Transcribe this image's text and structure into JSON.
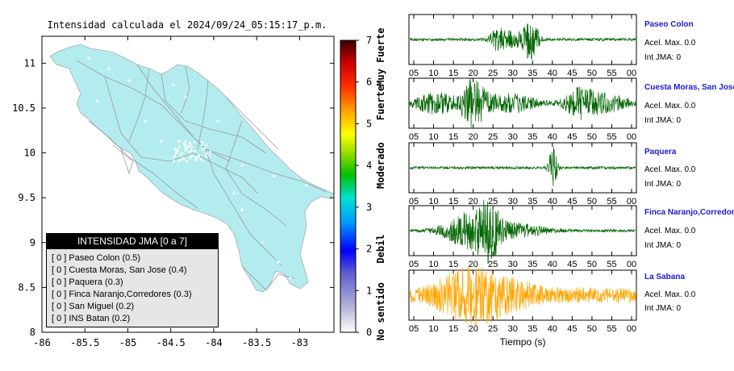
{
  "map": {
    "title": "Intensidad calculada el 2024/09/24_05:15:17_p.m.",
    "x_ticks": [
      "-86",
      "-85.5",
      "-85",
      "-84.5",
      "-84",
      "-83.5",
      "-83"
    ],
    "y_ticks": [
      "11",
      "10.5",
      "10",
      "9.5",
      "9",
      "8.5",
      "8"
    ],
    "xlim": [
      -86,
      -82.6
    ],
    "ylim": [
      8,
      11.3
    ],
    "land_color": "#b3ecee",
    "road_color": "#9a9a9a"
  },
  "colorbar": {
    "ticks": [
      "0",
      "1",
      "2",
      "3",
      "4",
      "5",
      "6",
      "7"
    ],
    "labels": [
      "No sentido",
      "Debil",
      "Moderado",
      "Fuerte",
      "Muy Fuerte"
    ]
  },
  "legend": {
    "title": "INTENSIDAD JMA [0 a 7]",
    "entries": [
      "[ 0 ]  Paseo Colon (0.5)",
      "[ 0 ]  Cuesta Moras, San Jose (0.4)",
      "[ 0 ]  Paquera (0.3)",
      "[ 0 ]  Finca Naranjo,Corredores (0.3)",
      "[ 0 ]  San Miguel (0.2)",
      "[ 0 ]  INS Batan (0.2)"
    ]
  },
  "waveforms": {
    "x_ticks": [
      "05",
      "10",
      "15",
      "20",
      "25",
      "30",
      "35",
      "40",
      "45",
      "50",
      "55",
      "00"
    ],
    "xlabel": "Tiempo (s)",
    "stations": [
      {
        "name": "Paseo Colon",
        "acel": "Acel. Max. 0.0",
        "int": "Int JMA: 0",
        "color": "#006400"
      },
      {
        "name": "Cuesta Moras, San Jose",
        "acel": "Acel. Max. 0.0",
        "int": "Int JMA: 0",
        "color": "#006400"
      },
      {
        "name": "Paquera",
        "acel": "Acel. Max. 0.0",
        "int": "Int JMA: 0",
        "color": "#006400"
      },
      {
        "name": "Finca Naranjo,Corredores",
        "acel": "Acel. Max. 0.0",
        "int": "Int JMA: 0",
        "color": "#006400"
      },
      {
        "name": "La Sabana",
        "acel": "Acel. Max. 0.0",
        "int": "Int JMA: 0",
        "color": "#ffa500"
      }
    ]
  },
  "chart_data": [
    {
      "type": "heatmap",
      "title": "Intensidad calculada el 2024/09/24_05:15:17_p.m.",
      "xlim": [
        -86,
        -82.6
      ],
      "ylim": [
        8,
        11.3
      ],
      "colorbar_range": [
        0,
        7
      ],
      "colorbar_labels": [
        "No sentido",
        "Debil",
        "Moderado",
        "Fuerte",
        "Muy Fuerte"
      ],
      "legend_title": "INTENSIDAD JMA [0 a 7]",
      "stations": [
        {
          "name": "Paseo Colon",
          "intensity": 0,
          "value": 0.5
        },
        {
          "name": "Cuesta Moras, San Jose",
          "intensity": 0,
          "value": 0.4
        },
        {
          "name": "Paquera",
          "intensity": 0,
          "value": 0.3
        },
        {
          "name": "Finca Naranjo,Corredores",
          "intensity": 0,
          "value": 0.3
        },
        {
          "name": "San Miguel",
          "intensity": 0,
          "value": 0.2
        },
        {
          "name": "INS Batan",
          "intensity": 0,
          "value": 0.2
        }
      ]
    },
    {
      "type": "line",
      "xlabel": "Tiempo (s)",
      "x_ticks": [
        "05",
        "10",
        "15",
        "20",
        "25",
        "30",
        "35",
        "40",
        "45",
        "50",
        "55",
        "00"
      ],
      "series": [
        {
          "name": "Paseo Colon",
          "acel_max": 0.0,
          "int_jma": 0,
          "bursts": [
            [
              23,
              2,
              0.45
            ],
            [
              27,
              3,
              0.35
            ],
            [
              32,
              2,
              1.0
            ]
          ]
        },
        {
          "name": "Cuesta Moras, San Jose",
          "acel_max": 0.0,
          "int_jma": 0,
          "bursts": [
            [
              7,
              6,
              0.45
            ],
            [
              17,
              3,
              1.0
            ],
            [
              26,
              8,
              0.4
            ],
            [
              45,
              4,
              0.6
            ],
            [
              52,
              6,
              0.4
            ]
          ]
        },
        {
          "name": "Paquera",
          "acel_max": 0.0,
          "int_jma": 0,
          "bursts": [
            [
              38,
              1,
              1.0
            ]
          ]
        },
        {
          "name": "Finca Naranjo,Corredores",
          "acel_max": 0.0,
          "int_jma": 0,
          "bursts": [
            [
              15,
              6,
              0.75
            ],
            [
              21,
              3,
              1.0
            ],
            [
              28,
              8,
              0.3
            ]
          ]
        },
        {
          "name": "La Sabana",
          "acel_max": 0.0,
          "int_jma": 0,
          "bursts": [
            [
              15,
              10,
              0.9
            ],
            [
              25,
              14,
              0.6
            ]
          ]
        }
      ]
    }
  ]
}
